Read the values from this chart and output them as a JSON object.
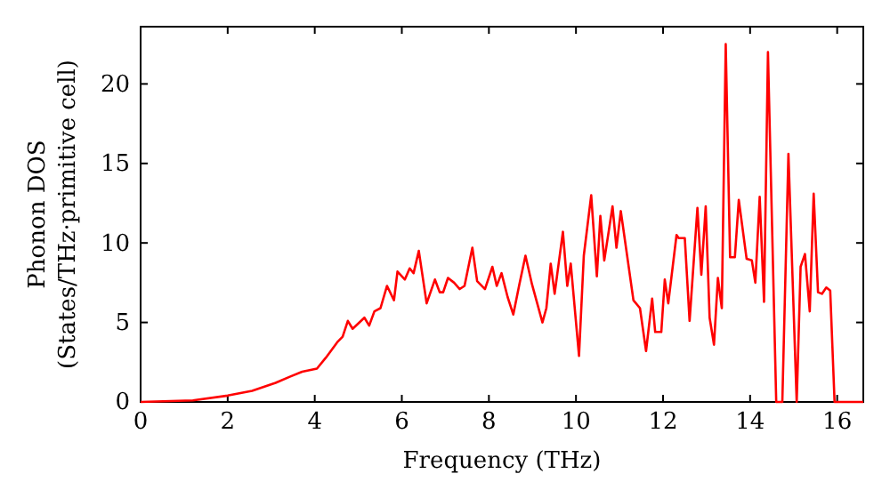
{
  "chart_data": {
    "type": "line",
    "xlabel": "Frequency (THz)",
    "ylabel": "Phonon DOS\n(States/THz·primitive cell)",
    "xlim": [
      0,
      16.6
    ],
    "ylim": [
      0,
      23.6
    ],
    "xticks": [
      0,
      2,
      4,
      6,
      8,
      10,
      12,
      14,
      16
    ],
    "yticks": [
      0,
      5,
      10,
      15,
      20
    ],
    "grid": false,
    "series": [
      {
        "color": "#ff0000",
        "x": [
          0,
          1.2,
          2.0,
          2.56,
          3.1,
          3.44,
          3.71,
          4.05,
          4.26,
          4.53,
          4.64,
          4.76,
          4.87,
          5.14,
          5.25,
          5.37,
          5.51,
          5.66,
          5.82,
          5.9,
          6.07,
          6.18,
          6.27,
          6.39,
          6.57,
          6.76,
          6.87,
          6.95,
          7.06,
          7.2,
          7.33,
          7.44,
          7.62,
          7.73,
          7.91,
          8.08,
          8.18,
          8.29,
          8.43,
          8.56,
          8.7,
          8.84,
          8.99,
          9.23,
          9.32,
          9.42,
          9.51,
          9.7,
          9.8,
          9.88,
          10.07,
          10.18,
          10.35,
          10.48,
          10.56,
          10.65,
          10.84,
          10.93,
          11.03,
          11.32,
          11.47,
          11.61,
          11.75,
          11.82,
          11.96,
          12.04,
          12.12,
          12.31,
          12.36,
          12.5,
          12.61,
          12.79,
          12.88,
          12.98,
          13.07,
          13.17,
          13.26,
          13.35,
          13.44,
          13.54,
          13.65,
          13.74,
          13.92,
          14.04,
          14.12,
          14.22,
          14.32,
          14.41,
          14.6,
          14.74,
          14.88,
          15.07,
          15.16,
          15.26,
          15.37,
          15.46,
          15.56,
          15.65,
          15.75,
          15.84,
          15.94,
          16.6
        ],
        "values": [
          0,
          0.1,
          0.4,
          0.7,
          1.2,
          1.6,
          1.9,
          2.1,
          2.8,
          3.8,
          4.1,
          5.1,
          4.6,
          5.3,
          4.8,
          5.7,
          5.9,
          7.3,
          6.4,
          8.2,
          7.7,
          8.4,
          8.1,
          9.5,
          6.2,
          7.7,
          6.9,
          6.9,
          7.8,
          7.5,
          7.1,
          7.3,
          9.7,
          7.6,
          7.1,
          8.5,
          7.3,
          8.1,
          6.6,
          5.5,
          7.4,
          9.2,
          7.4,
          5.0,
          5.9,
          8.7,
          6.8,
          10.7,
          7.3,
          8.7,
          2.9,
          9.2,
          13.0,
          7.9,
          11.7,
          8.9,
          12.3,
          9.7,
          12.0,
          6.4,
          5.9,
          3.2,
          6.5,
          4.4,
          4.4,
          7.7,
          6.2,
          10.5,
          10.3,
          10.3,
          5.1,
          12.2,
          8.0,
          12.3,
          5.3,
          3.6,
          7.8,
          5.9,
          22.5,
          9.1,
          9.1,
          12.7,
          9.0,
          8.9,
          7.5,
          12.9,
          6.3,
          22.0,
          0,
          0,
          15.6,
          0,
          8.5,
          9.3,
          5.7,
          13.1,
          6.9,
          6.8,
          7.2,
          7.0,
          0,
          0
        ]
      }
    ]
  }
}
